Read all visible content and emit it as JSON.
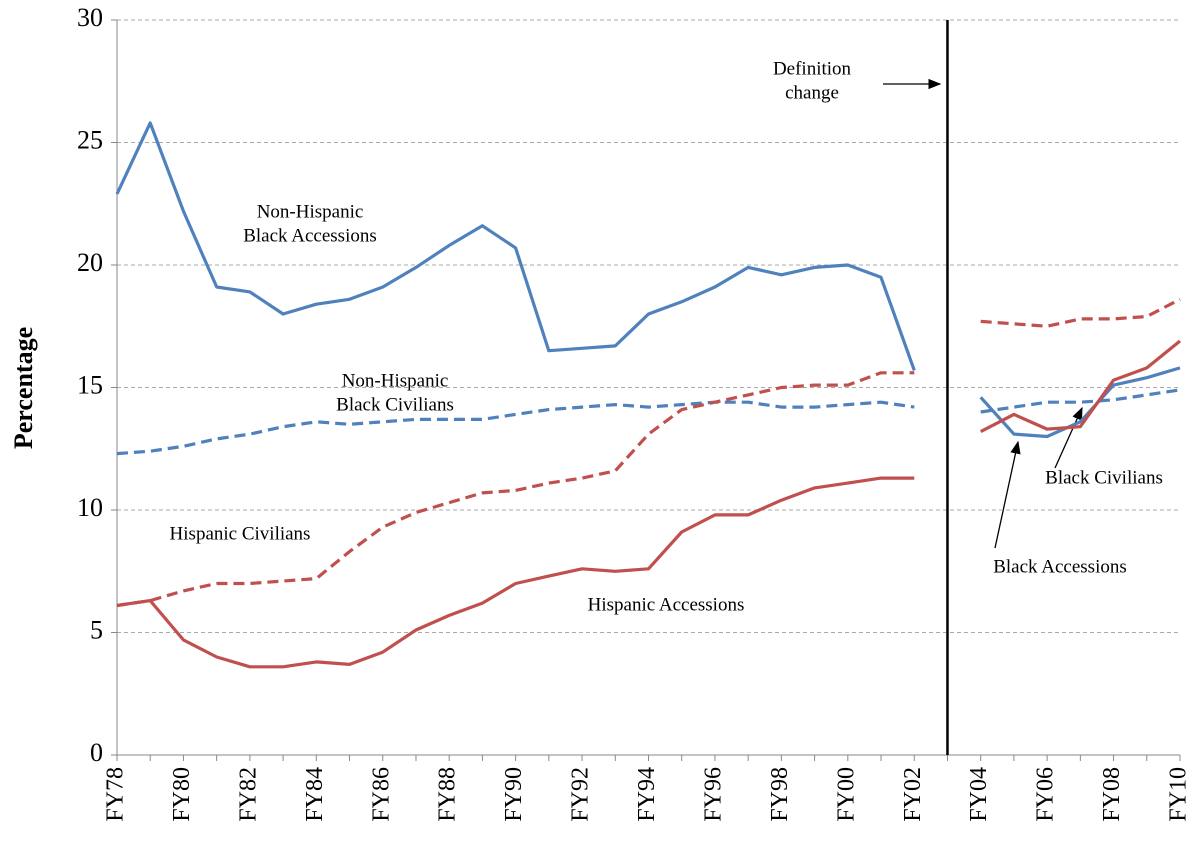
{
  "chart_data": {
    "type": "line",
    "y_label": "Percentage",
    "categories": [
      "FY78",
      null,
      "FY80",
      null,
      "FY82",
      null,
      "FY84",
      null,
      "FY86",
      null,
      "FY88",
      null,
      "FY90",
      null,
      "FY92",
      null,
      "FY94",
      null,
      "FY96",
      null,
      "FY98",
      null,
      "FY00",
      null,
      "FY02",
      null,
      "FY04",
      null,
      "FY06",
      null,
      "FY08",
      null,
      "FY10"
    ],
    "series": [
      {
        "color": "#4f81bd",
        "dashed": false,
        "values": [
          22.9,
          25.8,
          22.2,
          19.1,
          18.9,
          18.0,
          18.4,
          18.6,
          19.1,
          19.9,
          20.8,
          21.6,
          20.7,
          16.5,
          16.6,
          16.7,
          18.0,
          18.5,
          19.1,
          19.9,
          19.6,
          19.9,
          20.0,
          19.5,
          15.7,
          null,
          14.6,
          13.1,
          13.0,
          13.6,
          15.1,
          15.4,
          15.8
        ]
      },
      {
        "color": "#4f81bd",
        "dashed": true,
        "values": [
          12.3,
          12.4,
          12.6,
          12.9,
          13.1,
          13.4,
          13.6,
          13.5,
          13.6,
          13.7,
          13.7,
          13.7,
          13.9,
          14.1,
          14.2,
          14.3,
          14.2,
          14.3,
          14.4,
          14.4,
          14.2,
          14.2,
          14.3,
          14.4,
          14.2,
          null,
          14.0,
          14.2,
          14.4,
          14.4,
          14.5,
          14.7,
          14.9
        ]
      },
      {
        "color": "#c0504d",
        "dashed": false,
        "values": [
          6.1,
          6.3,
          4.7,
          4.0,
          3.6,
          3.6,
          3.8,
          3.7,
          4.2,
          5.1,
          5.7,
          6.2,
          7.0,
          7.3,
          7.6,
          7.5,
          7.6,
          9.1,
          9.8,
          9.8,
          10.4,
          10.9,
          11.1,
          11.3,
          11.3,
          null,
          13.2,
          13.9,
          13.3,
          13.4,
          15.3,
          15.8,
          16.9
        ]
      },
      {
        "color": "#c0504d",
        "dashed": true,
        "values": [
          6.1,
          6.3,
          6.7,
          7.0,
          7.0,
          7.1,
          7.2,
          8.3,
          9.3,
          9.9,
          10.3,
          10.7,
          10.8,
          11.1,
          11.3,
          11.6,
          13.1,
          14.1,
          14.4,
          14.7,
          15.0,
          15.1,
          15.1,
          15.6,
          15.6,
          null,
          17.7,
          17.6,
          17.5,
          17.8,
          17.8,
          17.9,
          18.6
        ]
      }
    ],
    "ylim": [
      0,
      30
    ],
    "yticks": [
      0,
      5,
      10,
      15,
      20,
      25,
      30
    ],
    "grid": true,
    "annotations": [
      {
        "lines": [
          "Non-Hispanic",
          "Black Accessions"
        ]
      },
      {
        "lines": [
          "Non-Hispanic",
          "Black Civilians"
        ]
      },
      {
        "lines": [
          "Hispanic Civilians"
        ]
      },
      {
        "lines": [
          "Hispanic Accessions"
        ]
      },
      {
        "lines": [
          "Definition",
          "change"
        ]
      },
      {
        "lines": [
          "Black Civilians"
        ]
      },
      {
        "lines": [
          "Black Accessions"
        ]
      }
    ]
  }
}
